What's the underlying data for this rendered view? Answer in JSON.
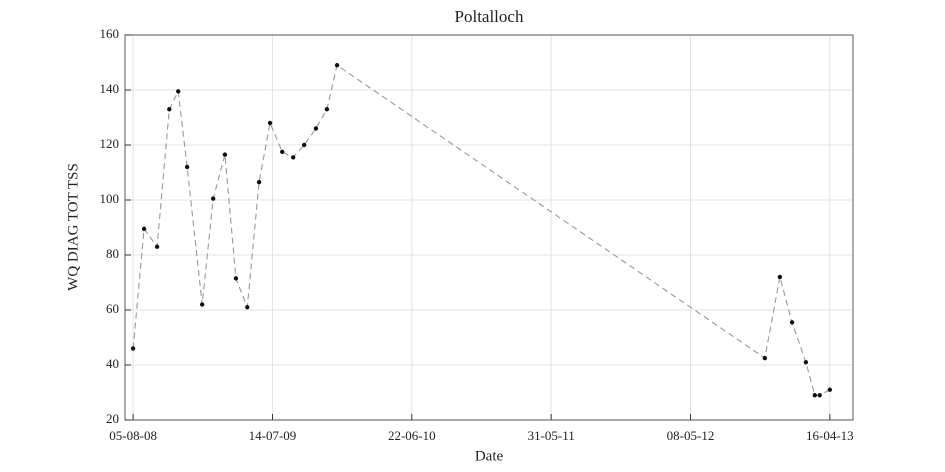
{
  "chart_data": {
    "type": "line",
    "title": "Poltalloch",
    "xlabel": "Date",
    "ylabel": "WQ DIAG TOT TSS",
    "x": [
      "2008-08-05",
      "2008-09-01",
      "2008-10-03",
      "2008-11-02",
      "2008-11-24",
      "2008-12-16",
      "2009-01-22",
      "2009-02-18",
      "2009-03-19",
      "2009-04-15",
      "2009-05-13",
      "2009-06-11",
      "2009-07-08",
      "2009-08-07",
      "2009-09-03",
      "2009-09-30",
      "2009-10-29",
      "2009-11-25",
      "2009-12-20",
      "2012-11-07",
      "2012-12-14",
      "2013-01-13",
      "2013-02-16",
      "2013-03-10",
      "2013-03-22",
      "2013-04-16"
    ],
    "values": [
      46,
      89.5,
      83,
      133,
      139.5,
      112,
      62,
      100.5,
      116.5,
      71.5,
      61,
      106.5,
      128,
      117.5,
      115.5,
      120,
      126,
      133,
      149,
      42.5,
      72,
      55.5,
      41,
      29,
      29,
      31
    ],
    "color": "#999999",
    "marker_color": "#111111",
    "line_style": "dashed",
    "xlim": [
      "2008-07-16",
      "2013-06-12"
    ],
    "xticks": [
      {
        "value": "2008-08-05",
        "label": "05-08-08"
      },
      {
        "value": "2009-07-14",
        "label": "14-07-09"
      },
      {
        "value": "2010-06-22",
        "label": "22-06-10"
      },
      {
        "value": "2011-05-31",
        "label": "31-05-11"
      },
      {
        "value": "2012-05-08",
        "label": "08-05-12"
      },
      {
        "value": "2013-04-16",
        "label": "16-04-13"
      }
    ],
    "ylim": [
      20,
      160
    ],
    "yticks": [
      20,
      40,
      60,
      80,
      100,
      120,
      140,
      160
    ],
    "grid": true
  }
}
